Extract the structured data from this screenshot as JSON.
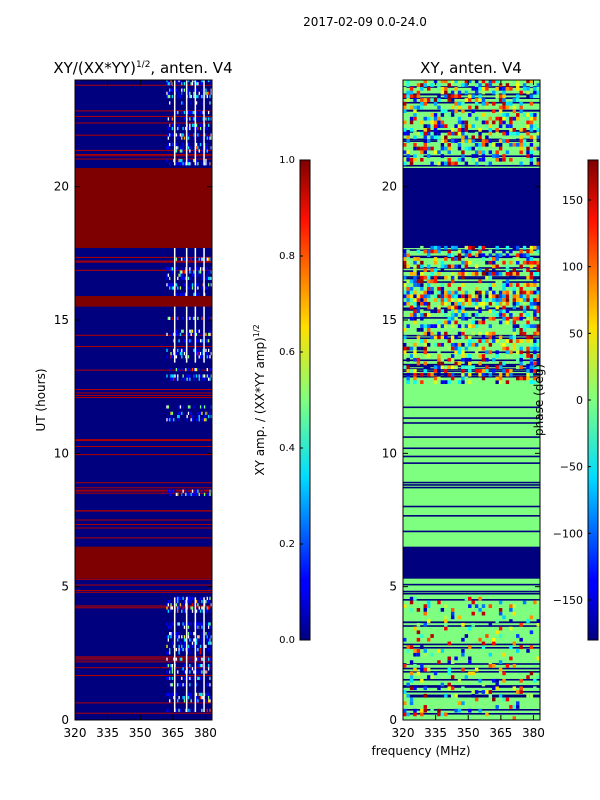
{
  "suptitle": "2017-02-09 0.0-24.0",
  "chart_data": [
    {
      "type": "heatmap",
      "panel": "amplitude",
      "title": "XY/(XX*YY)^1/2, anten. V4",
      "title_main": "XY/(XX*YY)",
      "title_exp": "1/2",
      "title_tail": ", anten. V4",
      "xlabel": "",
      "ylabel": "UT (hours)",
      "xlim": [
        320,
        383
      ],
      "ylim": [
        0,
        24
      ],
      "xticks": [
        320,
        335,
        350,
        365,
        380
      ],
      "yticks": [
        0,
        5,
        10,
        15,
        20
      ],
      "flagged_hours_value_1": [
        [
          6.5,
          5.3
        ],
        [
          20.7,
          17.7
        ],
        [
          15.9,
          15.5
        ]
      ],
      "colorbar": {
        "label": "XY amp. / (XX*YY amp)^1/2",
        "label_main": "XY amp. / (XX*YY amp)",
        "label_exp": "1/2",
        "range": [
          0.0,
          1.0
        ],
        "ticks": [
          "0.0",
          "0.2",
          "0.4",
          "0.6",
          "0.8",
          "1.0"
        ],
        "colormap": "jet"
      }
    },
    {
      "type": "heatmap",
      "panel": "phase",
      "title": "XY, anten. V4",
      "xlabel": "frequency (MHz)",
      "ylabel": "",
      "xlim": [
        320,
        383
      ],
      "ylim": [
        0,
        24
      ],
      "xticks": [
        320,
        335,
        350,
        365,
        380
      ],
      "yticks": [
        0,
        5,
        10,
        15,
        20
      ],
      "flagged_hours_value_low": [
        [
          6.5,
          5.3
        ],
        [
          20.7,
          17.7
        ]
      ],
      "colorbar": {
        "label": "phase (deg)",
        "range": [
          -180,
          180
        ],
        "ticks": [
          "−150",
          "−100",
          "−50",
          "0",
          "50",
          "100",
          "150"
        ],
        "tick_values": [
          -150,
          -100,
          -50,
          0,
          50,
          100,
          150
        ],
        "colormap": "jet"
      }
    }
  ]
}
